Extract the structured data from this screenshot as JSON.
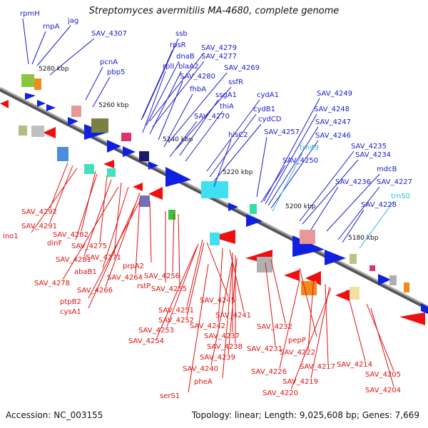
{
  "title": "Streptomyces avermitilis MA-4680, complete genome",
  "footer": {
    "accession": "Accession: NC_003155",
    "summary": "Topology: linear; Length: 9,025,608 bp; Genes: 7,669"
  },
  "colors": {
    "top_label": "#1a1acc",
    "bottom_label": "#e01010",
    "rna_label": "#30b8d8",
    "top_gene": "#1020e0",
    "bottom_gene": "#ee1010",
    "axis": "#888888"
  },
  "ticks": [
    "5280 kbp",
    "5260 kbp",
    "5240 kbp",
    "5220 kbp",
    "5200 kbp",
    "5180 kbp"
  ],
  "top_labels": [
    "rpmH",
    "rnpA",
    "jag",
    "SAV_4307",
    "ssb",
    "rpsR",
    "SAV_4279",
    "dnaB",
    "SAV_4277",
    "pcnA",
    "rplI",
    "blaA2",
    "SAV_4269",
    "pbp5",
    "SAV_4280",
    "ssfR",
    "fhbA",
    "ssgA1",
    "cydA1",
    "thiA",
    "cydB1",
    "SAV_4249",
    "SAV_4270",
    "cydCD",
    "SAV_4248",
    "hisC2",
    "SAV_4247",
    "SAV_4257",
    "SAV_4246",
    "trn49",
    "SAV_4235",
    "SAV_4234",
    "SAV_4250",
    "mdcB",
    "SAV_4236",
    "SAV_4227",
    "trn50",
    "SAV_4228"
  ],
  "bottom_labels": [
    "SAV_4292",
    "SAV_4291",
    "ino1",
    "SAV_4282",
    "dinF",
    "SAV_4275",
    "SAV_4281",
    "SAV_4271",
    "abaB1",
    "SAV_4278",
    "SAV_4264",
    "prpA2",
    "SAV_4266",
    "SAV_4256",
    "rstP",
    "ptpB2",
    "SAV_4255",
    "cysA1",
    "SAV_4245",
    "SAV_4251",
    "SAV_4252",
    "SAV_4241",
    "SAV_4253",
    "SAV_4242",
    "SAV_4237",
    "SAV_4232",
    "SAV_4254",
    "SAV_4238",
    "SAV_4231",
    "pepP",
    "SAV_4239",
    "SAV_4222",
    "SAV_4240",
    "SAV_4226",
    "SAV_4217",
    "SAV_4214",
    "pheA",
    "SAV_4219",
    "SAV_4205",
    "SAV_4220",
    "serS1",
    "SAV_4204"
  ]
}
